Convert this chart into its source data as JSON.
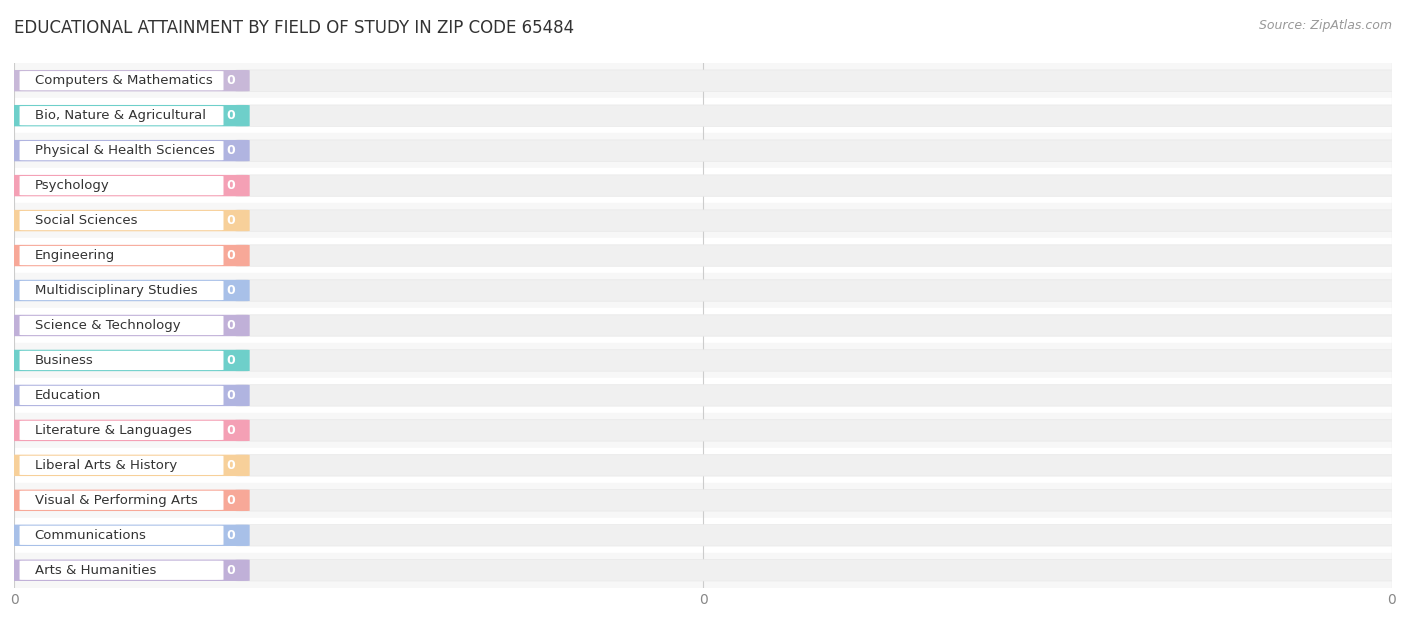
{
  "title": "EDUCATIONAL ATTAINMENT BY FIELD OF STUDY IN ZIP CODE 65484",
  "source": "Source: ZipAtlas.com",
  "categories": [
    "Computers & Mathematics",
    "Bio, Nature & Agricultural",
    "Physical & Health Sciences",
    "Psychology",
    "Social Sciences",
    "Engineering",
    "Multidisciplinary Studies",
    "Science & Technology",
    "Business",
    "Education",
    "Literature & Languages",
    "Liberal Arts & History",
    "Visual & Performing Arts",
    "Communications",
    "Arts & Humanities"
  ],
  "values": [
    0,
    0,
    0,
    0,
    0,
    0,
    0,
    0,
    0,
    0,
    0,
    0,
    0,
    0,
    0
  ],
  "bar_colors": [
    "#c8b8d8",
    "#6ecfca",
    "#b0b4e0",
    "#f4a0b5",
    "#f7d09a",
    "#f7a898",
    "#a8c0e8",
    "#c0b0d8",
    "#6ecfca",
    "#b0b4e0",
    "#f4a0b5",
    "#f7d09a",
    "#f7a898",
    "#a8c0e8",
    "#c0b0d8"
  ],
  "background_color": "#ffffff",
  "row_colors": [
    "#f7f7f7",
    "#ffffff"
  ],
  "title_fontsize": 12,
  "label_fontsize": 10,
  "source_fontsize": 9,
  "n_xticks": 3,
  "xtick_labels": [
    "0",
    "0",
    "0"
  ],
  "xtick_positions": [
    0.0,
    0.5,
    1.0
  ]
}
